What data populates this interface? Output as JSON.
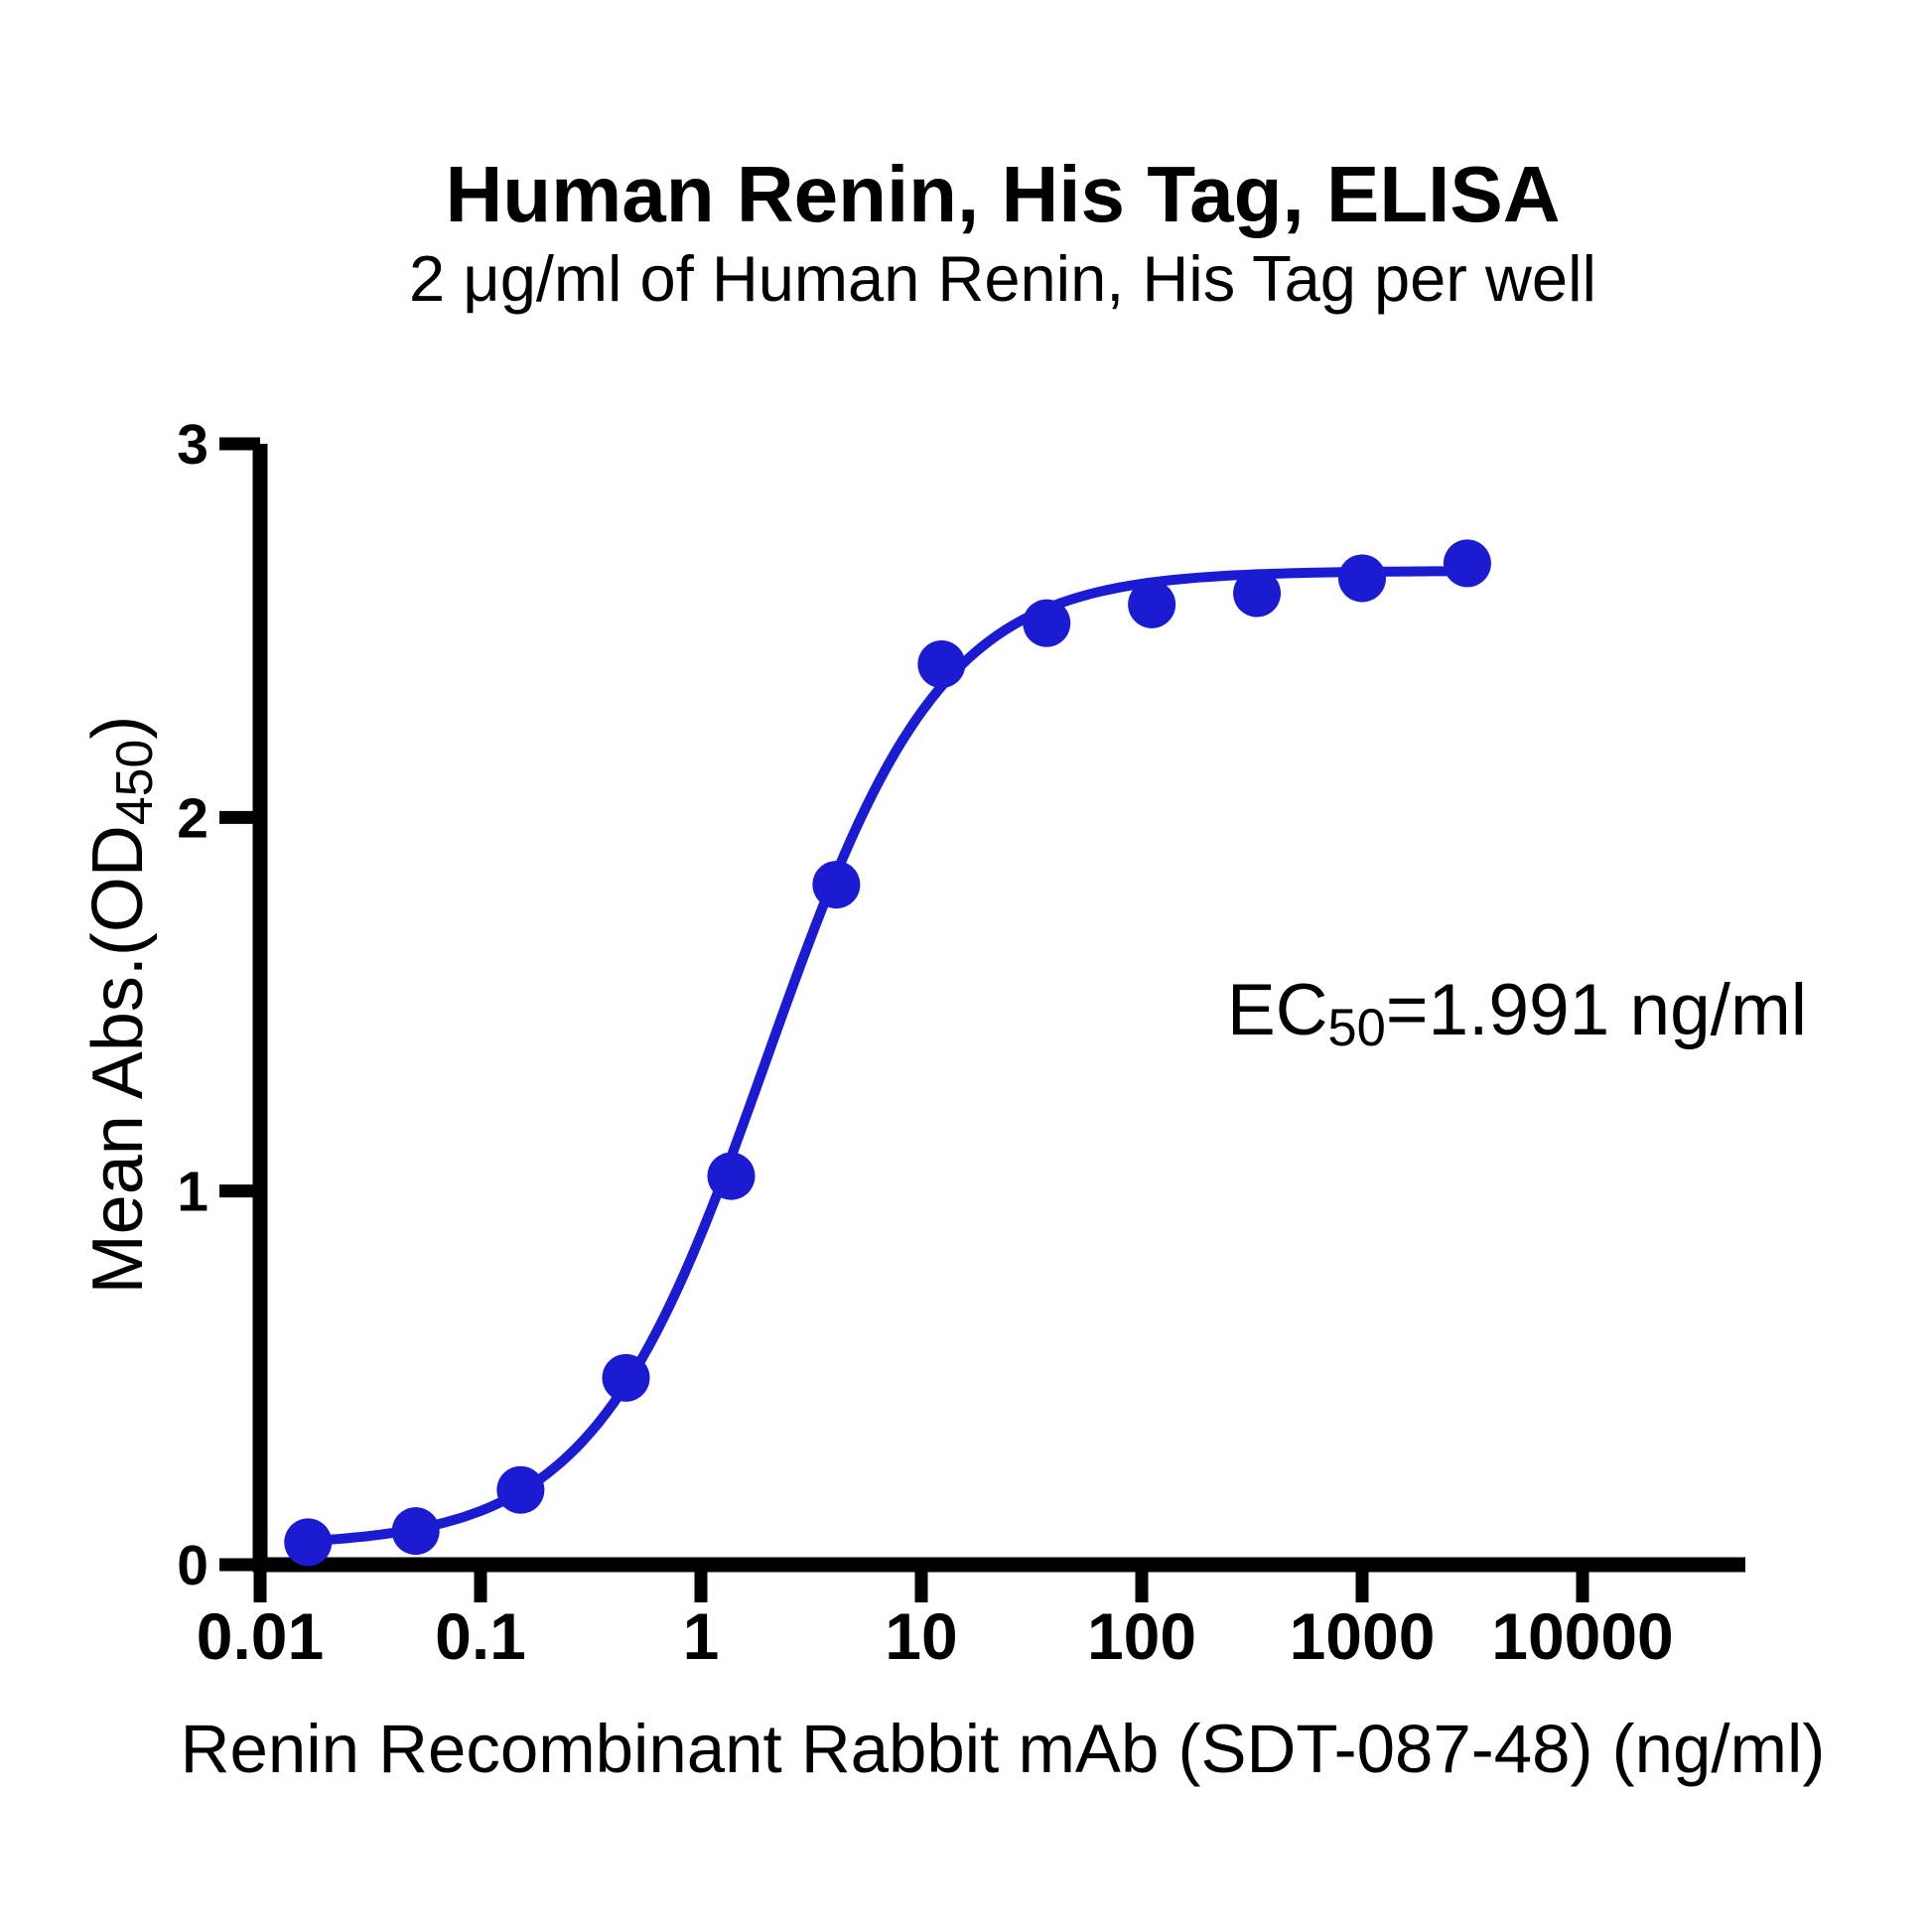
{
  "figure": {
    "title": "Human Renin, His Tag, ELISA",
    "subtitle": "2 μg/ml of Human Renin, His Tag per well",
    "x_axis": {
      "label": "Renin Recombinant Rabbit mAb (SDT-087-48) (ng/ml)"
    },
    "y_axis": {
      "label_prefix": "Mean Abs.(OD",
      "label_sub": "450",
      "label_suffix": ")"
    },
    "annotation": {
      "prefix": "EC",
      "sub": "50",
      "rest": "=1.991 ng/ml"
    }
  },
  "chart_data": {
    "type": "scatter",
    "x_scale": "log10",
    "xlim": [
      0.01,
      10000
    ],
    "ylim": [
      0,
      3
    ],
    "grid": false,
    "legend": "none",
    "title": "Human Renin, His Tag, ELISA",
    "subtitle": "2 μg/ml of Human Renin, His Tag per well",
    "xlabel": "Renin Recombinant Rabbit mAb (SDT-087-48) (ng/ml)",
    "ylabel": "Mean Abs.(OD450)",
    "annotation_text": "EC50=1.991 ng/ml",
    "x_ticks": [
      "0.01",
      "0.1",
      "1",
      "10",
      "100",
      "1000",
      "10000"
    ],
    "x_tick_values": [
      0.01,
      0.1,
      1,
      10,
      100,
      1000,
      10000
    ],
    "y_ticks": [
      "0",
      "1",
      "2",
      "3"
    ],
    "y_tick_values": [
      0,
      1,
      2,
      3
    ],
    "series": [
      {
        "name": "Human Renin His Tag ELISA",
        "x": [
          0.0165,
          0.0508,
          0.152,
          0.457,
          1.372,
          4.115,
          12.35,
          37.04,
          111.1,
          333.3,
          1000,
          3000
        ],
        "y": [
          0.06,
          0.09,
          0.2,
          0.5,
          1.04,
          1.82,
          2.41,
          2.52,
          2.57,
          2.6,
          2.64,
          2.68
        ]
      }
    ],
    "fit": {
      "model": "4PL",
      "ec50": 1.991,
      "hill": 1.1,
      "bottom": 0.05,
      "top": 2.66
    },
    "colors": {
      "point": "#1B1BD2",
      "line": "#1B1BD2",
      "axis": "#000000",
      "text": "#000000"
    }
  }
}
